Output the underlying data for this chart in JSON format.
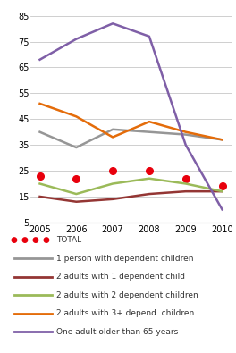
{
  "years": [
    2005,
    2006,
    2007,
    2008,
    2009,
    2010
  ],
  "series": {
    "TOTAL": {
      "values": [
        23,
        22,
        25,
        25,
        22,
        19
      ],
      "color": "#e8000d",
      "linestyle": "dotted",
      "linewidth": 0,
      "marker": "o",
      "markersize": 5.5
    },
    "1 person with dependent children": {
      "values": [
        40,
        34,
        41,
        40,
        39,
        37
      ],
      "color": "#969696",
      "linestyle": "solid",
      "linewidth": 1.8,
      "marker": null,
      "markersize": 0
    },
    "2 adults with 1 dependent child": {
      "values": [
        15,
        13,
        14,
        16,
        17,
        17
      ],
      "color": "#943634",
      "linestyle": "solid",
      "linewidth": 1.8,
      "marker": null,
      "markersize": 0
    },
    "2 adults with 2 dependent children": {
      "values": [
        20,
        16,
        20,
        22,
        20,
        17
      ],
      "color": "#9bba59",
      "linestyle": "solid",
      "linewidth": 1.8,
      "marker": null,
      "markersize": 0
    },
    "2 adults with 3+ depend. children": {
      "values": [
        51,
        46,
        38,
        44,
        40,
        37
      ],
      "color": "#e46c0a",
      "linestyle": "solid",
      "linewidth": 1.8,
      "marker": null,
      "markersize": 0
    },
    "One adult older than 65 years": {
      "values": [
        68,
        76,
        82,
        77,
        35,
        10
      ],
      "color": "#7f5fa7",
      "linestyle": "solid",
      "linewidth": 1.8,
      "marker": null,
      "markersize": 0
    }
  },
  "ylim": [
    5,
    87
  ],
  "yticks": [
    5,
    15,
    25,
    35,
    45,
    55,
    65,
    75,
    85
  ],
  "legend_order": [
    "TOTAL",
    "1 person with dependent children",
    "2 adults with 1 dependent child",
    "2 adults with 2 dependent children",
    "2 adults with 3+ depend. children",
    "One adult older than 65 years"
  ],
  "legend_labels": [
    "TOTAL",
    "1 person with dependent children",
    "2 adults with 1 dependent child",
    "2 adults with 2 dependent children",
    "2 adults with 3+ depend. children",
    "One adult older than 65 years"
  ],
  "background_color": "#ffffff"
}
